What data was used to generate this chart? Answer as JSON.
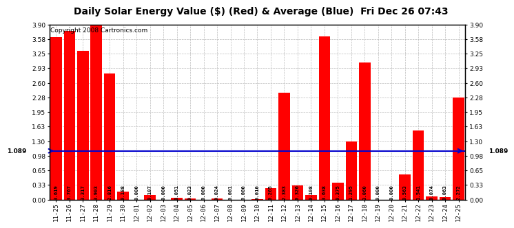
{
  "title": "Daily Solar Energy Value ($) (Red) & Average (Blue)  Fri Dec 26 07:43",
  "copyright": "Copyright 2008 Cartronics.com",
  "categories": [
    "11-25",
    "11-26",
    "11-27",
    "11-28",
    "11-29",
    "11-30",
    "12-01",
    "12-02",
    "12-03",
    "12-04",
    "12-05",
    "12-06",
    "12-07",
    "12-08",
    "12-09",
    "12-10",
    "12-11",
    "12-12",
    "12-13",
    "12-14",
    "12-15",
    "12-16",
    "12-17",
    "12-18",
    "12-19",
    "12-20",
    "12-21",
    "12-22",
    "12-23",
    "12-24",
    "12-25"
  ],
  "values": [
    3.619,
    3.767,
    3.317,
    3.903,
    2.816,
    0.188,
    0.0,
    0.107,
    0.0,
    0.051,
    0.023,
    0.0,
    0.024,
    0.001,
    0.0,
    0.01,
    0.265,
    2.383,
    0.326,
    0.108,
    3.638,
    0.375,
    1.295,
    3.06,
    0.0,
    0.0,
    0.563,
    1.541,
    0.074,
    0.063,
    2.272
  ],
  "average": 1.089,
  "ylim": [
    0,
    3.9
  ],
  "yticks": [
    0.0,
    0.33,
    0.65,
    0.98,
    1.3,
    1.63,
    1.95,
    2.28,
    2.6,
    2.93,
    3.25,
    3.58,
    3.9
  ],
  "bar_color": "#ff0000",
  "avg_line_color": "#0000cc",
  "bg_color": "#ffffff",
  "plot_bg_color": "#ffffff",
  "grid_color": "#bbbbbb",
  "title_fontsize": 10,
  "copyright_fontsize": 6.5,
  "tick_fontsize": 6.5,
  "value_fontsize": 5.2,
  "avg_label_fontsize": 6.5
}
